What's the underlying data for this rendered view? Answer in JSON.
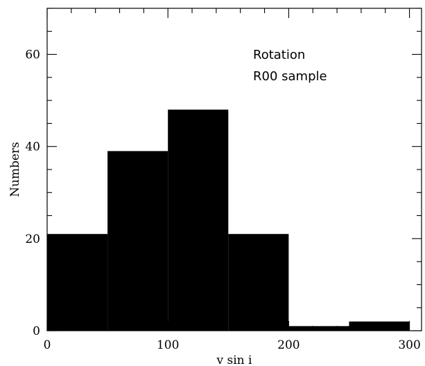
{
  "chart_data": {
    "type": "bar",
    "title": "",
    "xlabel": "v sin i",
    "ylabel": "Numbers",
    "xlim": [
      0,
      310
    ],
    "ylim": [
      0,
      70
    ],
    "bins": [
      {
        "x0": 0,
        "x1": 50,
        "value": 21
      },
      {
        "x0": 50,
        "x1": 100,
        "value": 39
      },
      {
        "x0": 100,
        "x1": 150,
        "value": 48
      },
      {
        "x0": 150,
        "x1": 200,
        "value": 21
      },
      {
        "x0": 200,
        "x1": 250,
        "value": 1
      },
      {
        "x0": 250,
        "x1": 300,
        "value": 2
      }
    ],
    "x_ticks_major": [
      0,
      100,
      200,
      300
    ],
    "x_tick_labels": [
      "0",
      "100",
      "200",
      "300"
    ],
    "x_ticks_minor": [
      20,
      40,
      60,
      80,
      120,
      140,
      160,
      180,
      220,
      240,
      260,
      280
    ],
    "y_ticks_major": [
      0,
      20,
      40,
      60
    ],
    "y_tick_labels": [
      "0",
      "20",
      "40",
      "60"
    ],
    "y_ticks_minor": [
      5,
      10,
      15,
      25,
      30,
      35,
      45,
      50,
      55,
      65,
      70
    ],
    "annotations": [
      "Rotation",
      "R00 sample"
    ],
    "bar_color": "#000000",
    "grid": false,
    "legend": "none"
  }
}
